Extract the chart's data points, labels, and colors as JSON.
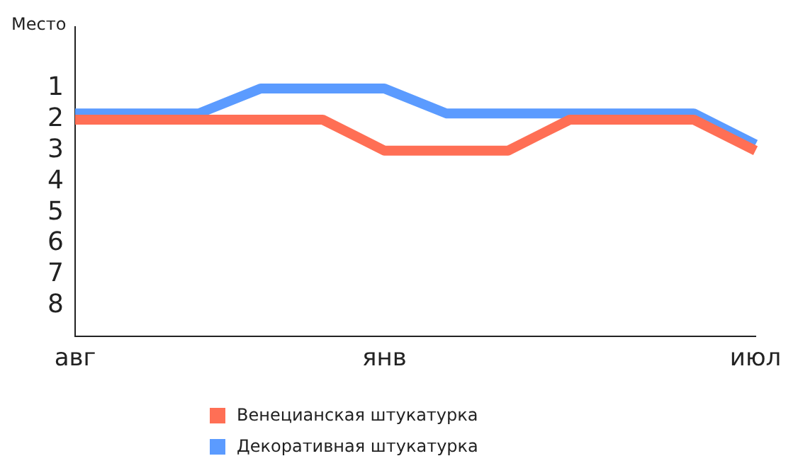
{
  "chart_data": {
    "type": "line",
    "ylabel": "Место",
    "categories": [
      "авг",
      null,
      null,
      null,
      null,
      "янв",
      null,
      null,
      null,
      null,
      null,
      "июл"
    ],
    "series": [
      {
        "name": "Венецианская штукатурка",
        "color": "#ff6f55",
        "values": [
          2,
          2,
          2,
          2,
          2,
          3,
          3,
          3,
          2,
          2,
          2,
          3
        ]
      },
      {
        "name": "Декоративная штукатурка",
        "color": "#5b9bff",
        "values": [
          1.8,
          1.8,
          1.8,
          1,
          1,
          1,
          1.8,
          1.8,
          1.8,
          1.8,
          1.8,
          2.8
        ]
      }
    ],
    "ylim": [
      9,
      -1
    ],
    "yticks": [
      1,
      2,
      3,
      4,
      5,
      6,
      7,
      8
    ],
    "grid": false,
    "legend": "bottom",
    "marker": "none",
    "line_style": "solid"
  }
}
